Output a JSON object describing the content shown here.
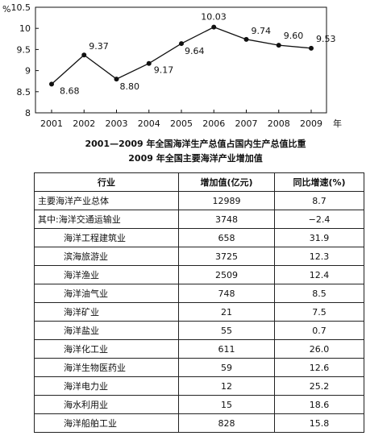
{
  "chart_data": {
    "type": "line",
    "title": "2001—2009 年全国海洋生产总值占国内生产总值比重",
    "ylabel": "%",
    "xlabel": "年",
    "ylim": [
      8,
      10.5
    ],
    "yticks": [
      "8",
      "8.5",
      "9",
      "9.5",
      "10",
      "10.5"
    ],
    "x": [
      "2001",
      "2002",
      "2003",
      "2004",
      "2005",
      "2006",
      "2007",
      "2008",
      "2009"
    ],
    "values": [
      8.68,
      9.37,
      8.8,
      9.17,
      9.64,
      10.03,
      9.74,
      9.6,
      9.53
    ],
    "value_labels": [
      "8.68",
      "9.37",
      "8.80",
      "9.17",
      "9.64",
      "10.03",
      "9.74",
      "9.60",
      "9.53"
    ],
    "grid": false
  },
  "table": {
    "title": "2009 年全国主要海洋产业增加值",
    "headers": [
      "行业",
      "增加值(亿元)",
      "同比增速(%)"
    ],
    "rows": [
      {
        "name": "主要海洋产业总体",
        "value": "12989",
        "growth": "8.7",
        "indent": false
      },
      {
        "name": "其中:海洋交通运输业",
        "value": "3748",
        "growth": "−2.4",
        "indent": false
      },
      {
        "name": "海洋工程建筑业",
        "value": "658",
        "growth": "31.9",
        "indent": true
      },
      {
        "name": "滨海旅游业",
        "value": "3725",
        "growth": "12.3",
        "indent": true
      },
      {
        "name": "海洋渔业",
        "value": "2509",
        "growth": "12.4",
        "indent": true
      },
      {
        "name": "海洋油气业",
        "value": "748",
        "growth": "8.5",
        "indent": true
      },
      {
        "name": "海洋矿业",
        "value": "21",
        "growth": "7.5",
        "indent": true
      },
      {
        "name": "海洋盐业",
        "value": "55",
        "growth": "0.7",
        "indent": true
      },
      {
        "name": "海洋化工业",
        "value": "611",
        "growth": "26.0",
        "indent": true
      },
      {
        "name": "海洋生物医药业",
        "value": "59",
        "growth": "12.6",
        "indent": true
      },
      {
        "name": "海洋电力业",
        "value": "12",
        "growth": "25.2",
        "indent": true
      },
      {
        "name": "海水利用业",
        "value": "15",
        "growth": "18.6",
        "indent": true
      },
      {
        "name": "海洋船舶工业",
        "value": "828",
        "growth": "15.8",
        "indent": true
      }
    ]
  }
}
